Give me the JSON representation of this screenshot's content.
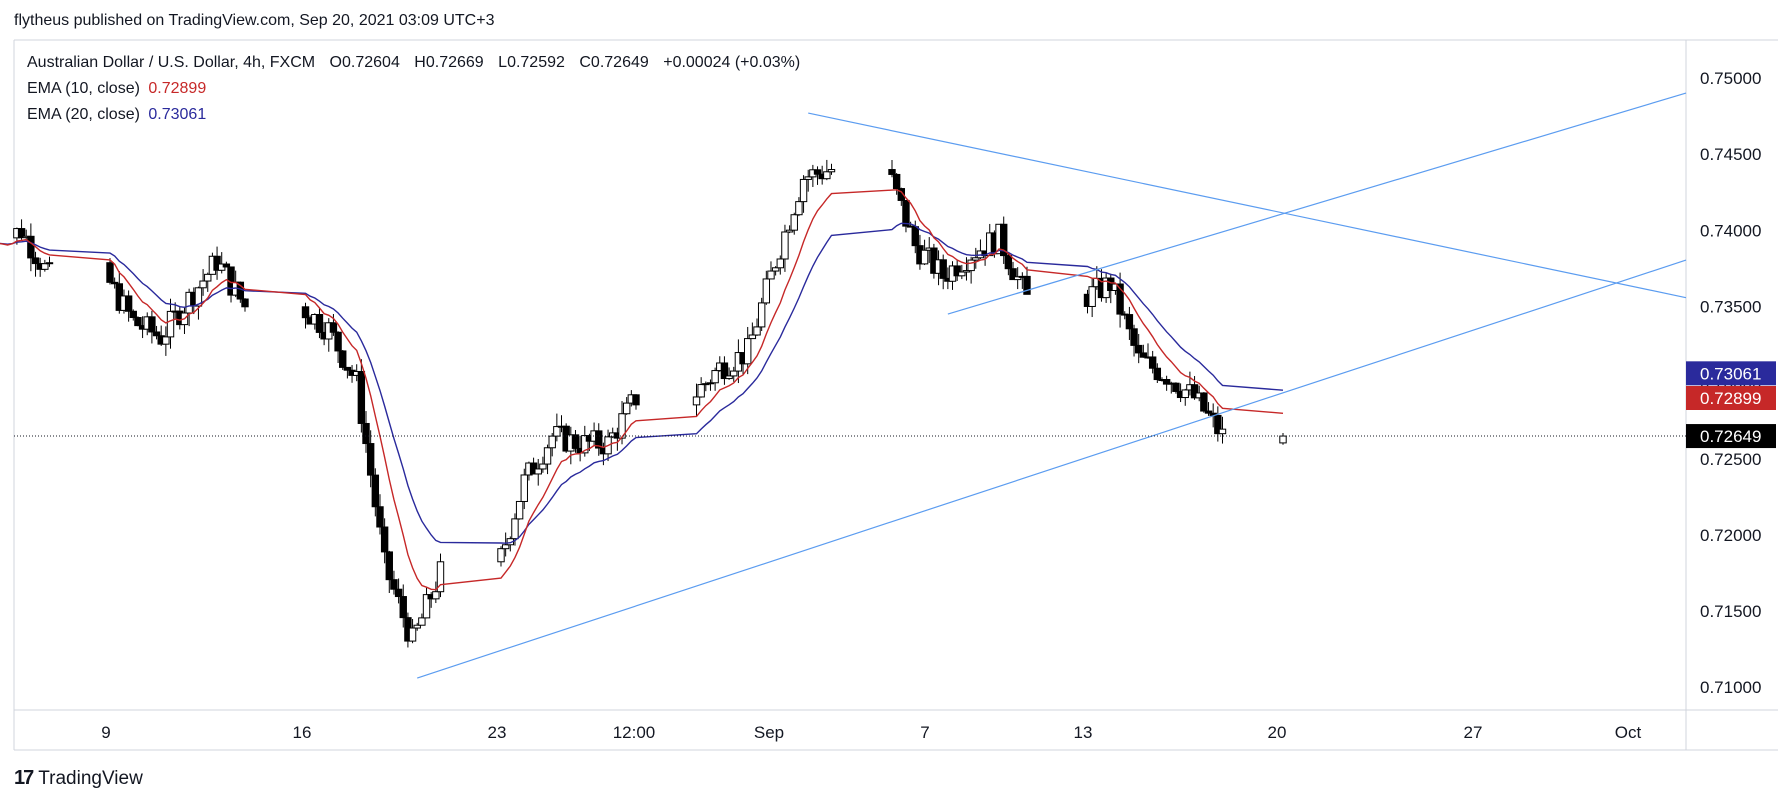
{
  "header": {
    "published_text": "flytheus published on TradingView.com, Sep 20, 2021 03:09 UTC+3"
  },
  "legend": {
    "symbol": "Australian Dollar / U.S. Dollar, 4h, FXCM",
    "open_label": "O",
    "open_value": "0.72604",
    "high_label": "H",
    "high_value": "0.72669",
    "low_label": "L",
    "low_value": "0.72592",
    "close_label": "C",
    "close_value": "0.72649",
    "change": "+0.00024 (+0.03%)",
    "ema10_label": "EMA (10, close)",
    "ema10_value": "0.72899",
    "ema20_label": "EMA (20, close)",
    "ema20_value": "0.73061"
  },
  "footer": {
    "brand": "TradingView"
  },
  "colors": {
    "ema10": "#c62828",
    "ema20": "#2a2a9c",
    "trendline": "#5b9cf0",
    "candle": "#000000",
    "last_price_bg": "#000000",
    "ema10_tag_bg": "#c62828",
    "ema20_tag_bg": "#2a2a9c"
  },
  "chart_data": {
    "type": "candlestick",
    "symbol": "AUDUSD",
    "timeframe": "4h",
    "y_ticks": [
      "0.75000",
      "0.74500",
      "0.74000",
      "0.73500",
      "0.73000",
      "0.72500",
      "0.72000",
      "0.71500",
      "0.71000"
    ],
    "x_ticks": [
      "9",
      "16",
      "23",
      "12:00",
      "Sep",
      "7",
      "13",
      "20",
      "27",
      "Oct"
    ],
    "ylim": [
      0.7085,
      0.7525
    ],
    "last_price": "0.72649",
    "ema10_last": "0.72899",
    "ema20_last": "0.73061",
    "anchors": [
      [
        "Aug 5",
        0.739
      ],
      [
        "Aug 6",
        0.74
      ],
      [
        "Aug 9",
        0.737
      ],
      [
        "Aug 10",
        0.734
      ],
      [
        "Aug 11",
        0.733
      ],
      [
        "Aug 12",
        0.7355
      ],
      [
        "Aug 13",
        0.738
      ],
      [
        "Aug 16",
        0.735
      ],
      [
        "Aug 17",
        0.7335
      ],
      [
        "Aug 18",
        0.73
      ],
      [
        "Aug 19",
        0.718
      ],
      [
        "Aug 20",
        0.713
      ],
      [
        "Aug 23",
        0.7175
      ],
      [
        "Aug 24",
        0.7235
      ],
      [
        "Aug 25",
        0.7265
      ],
      [
        "Aug 26",
        0.726
      ],
      [
        "Aug 27",
        0.726
      ],
      [
        "Aug 30",
        0.729
      ],
      [
        "Aug 31",
        0.731
      ],
      [
        "Sep 1",
        0.732
      ],
      [
        "Sep 2",
        0.738
      ],
      [
        "Sep 3",
        0.7435
      ],
      [
        "Sep 6",
        0.744
      ],
      [
        "Sep 7",
        0.739
      ],
      [
        "Sep 8",
        0.737
      ],
      [
        "Sep 9",
        0.7385
      ],
      [
        "Sep 10",
        0.7395
      ],
      [
        "Sep 13",
        0.7355
      ],
      [
        "Sep 14",
        0.7365
      ],
      [
        "Sep 15",
        0.7315
      ],
      [
        "Sep 16",
        0.7305
      ],
      [
        "Sep 17",
        0.729
      ],
      [
        "Sep 20",
        0.72649
      ]
    ],
    "trendlines": [
      {
        "name": "descending-resistance",
        "from": [
          "Sep 3",
          0.7477
        ],
        "to": [
          "Oct 4",
          0.7358
        ]
      },
      {
        "name": "lower-support",
        "from": [
          "Aug 20",
          0.7106
        ],
        "to": [
          "Oct 4",
          0.7377
        ]
      },
      {
        "name": "upper-channel",
        "from": [
          "Sep 8",
          0.7345
        ],
        "to": [
          "Oct 4",
          0.7487
        ]
      }
    ]
  }
}
